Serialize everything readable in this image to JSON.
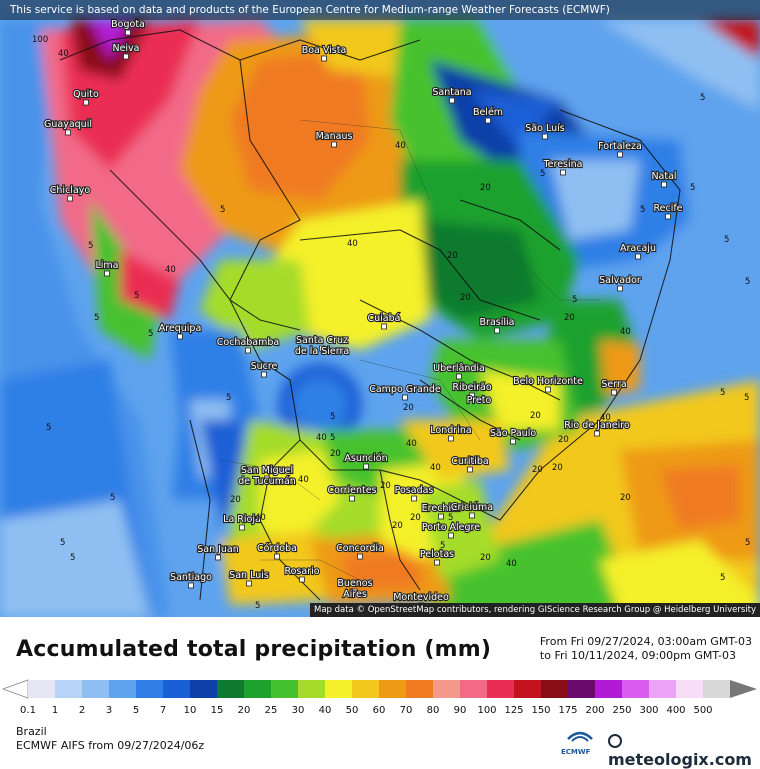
{
  "disclaimer": "This service is based on data and products of the European Centre for Medium-range Weather Forecasts (ECMWF)",
  "attribution": "Map data © OpenStreetMap contributors, rendering GIScience Research Group @ Heidelberg University",
  "title": "Accumulated total precipitation (mm)",
  "range_from": "From Fri 09/27/2024, 03:00am GMT-03",
  "range_to": "to Fri 10/11/2024, 09:00pm GMT-03",
  "region": "Brazil",
  "model": "ECMWF AIFS from  09/27/2024/06z",
  "brand": "meteologix.com",
  "ecmwf_logo_text": "ECMWF",
  "colorbar": {
    "labels": [
      "0.1",
      "1",
      "2",
      "3",
      "5",
      "7",
      "10",
      "15",
      "20",
      "25",
      "30",
      "40",
      "50",
      "60",
      "70",
      "80",
      "90",
      "100",
      "125",
      "150",
      "175",
      "200",
      "250",
      "300",
      "400",
      "500"
    ],
    "colors": [
      "#e6e6f5",
      "#b7d3f5",
      "#8fbff2",
      "#5ea3ee",
      "#2f7fe6",
      "#1a5fd6",
      "#0f3fa8",
      "#0d7a2f",
      "#1fa12e",
      "#46c22e",
      "#a5dc2a",
      "#f4f02a",
      "#f2c81c",
      "#ee9a14",
      "#f07a22",
      "#f59a8a",
      "#f26a88",
      "#ea2d52",
      "#c2121e",
      "#8a0d16",
      "#6a0a6e",
      "#b31ad6",
      "#d85cf0",
      "#eba4f5",
      "#f7ddf8",
      "#d8d8d8"
    ]
  },
  "cities": [
    {
      "name": "Bogota"
    },
    {
      "name": "Neiva"
    },
    {
      "name": "Boa Vista"
    },
    {
      "name": "Quito"
    },
    {
      "name": "Guayaquil"
    },
    {
      "name": "Santana"
    },
    {
      "name": "Belém"
    },
    {
      "name": "São Luís"
    },
    {
      "name": "Manaus"
    },
    {
      "name": "Fortaleza"
    },
    {
      "name": "Teresina"
    },
    {
      "name": "Natal"
    },
    {
      "name": "Chiclayo"
    },
    {
      "name": "Recife"
    },
    {
      "name": "Aracaju"
    },
    {
      "name": "Lima"
    },
    {
      "name": "Salvador"
    },
    {
      "name": "Arequipa"
    },
    {
      "name": "Cuiabá"
    },
    {
      "name": "Brasília"
    },
    {
      "name": "Cochabamba"
    },
    {
      "name": "Santa Cruz"
    },
    {
      "name": "de la Sierra"
    },
    {
      "name": "Sucre"
    },
    {
      "name": "Uberlândia"
    },
    {
      "name": "Belo Horizonte"
    },
    {
      "name": "Campo Grande"
    },
    {
      "name": "Ribeirão"
    },
    {
      "name": "Preto"
    },
    {
      "name": "Serra"
    },
    {
      "name": "Londrina"
    },
    {
      "name": "São Paulo"
    },
    {
      "name": "Rio de Janeiro"
    },
    {
      "name": "Asunción"
    },
    {
      "name": "Curitiba"
    },
    {
      "name": "San Miguel"
    },
    {
      "name": "de Tucumán"
    },
    {
      "name": "Corrientes"
    },
    {
      "name": "Posadas"
    },
    {
      "name": "Erechim"
    },
    {
      "name": "Criciúma"
    },
    {
      "name": "La Rioja"
    },
    {
      "name": "Porto Alegre"
    },
    {
      "name": "San Juan"
    },
    {
      "name": "Córdoba"
    },
    {
      "name": "Concordia"
    },
    {
      "name": "Pelotas"
    },
    {
      "name": "Santiago"
    },
    {
      "name": "San Luis"
    },
    {
      "name": "Rosario"
    },
    {
      "name": "Buenos"
    },
    {
      "name": "Aires"
    },
    {
      "name": "Montevideo"
    }
  ],
  "contour_labels": [
    "100",
    "40",
    "5",
    "40",
    "5",
    "5",
    "5",
    "5",
    "40",
    "20",
    "5",
    "5",
    "40",
    "5",
    "5",
    "20",
    "40",
    "5",
    "20",
    "20",
    "5",
    "5",
    "40",
    "20",
    "40",
    "20",
    "5",
    "20",
    "20",
    "20",
    "5",
    "40",
    "20",
    "5",
    "40",
    "20",
    "20",
    "5",
    "20",
    "40",
    "5",
    "5",
    "20",
    "5",
    "5",
    "40",
    "5",
    "5",
    "5",
    "40",
    "5",
    "20",
    "5",
    "20",
    "5"
  ]
}
